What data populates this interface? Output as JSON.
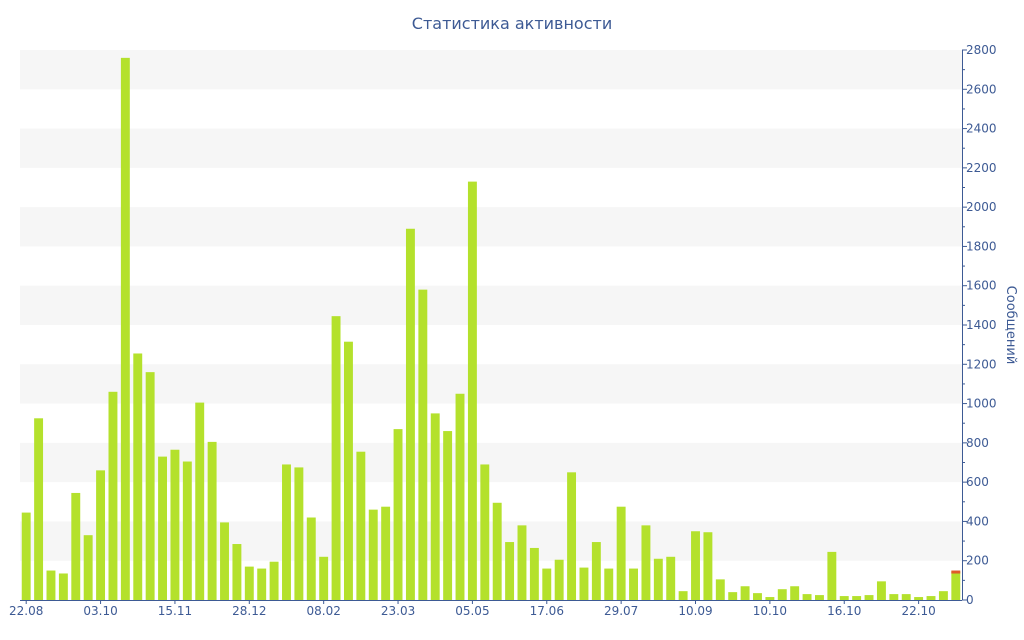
{
  "chart_data": {
    "type": "bar",
    "title": "Статистика активности",
    "ylabel": "Сообщений",
    "y_axis_side": "right",
    "ylim": [
      0,
      2800
    ],
    "y_ticks": [
      0,
      200,
      400,
      600,
      800,
      1000,
      1200,
      1400,
      1600,
      1800,
      2000,
      2200,
      2400,
      2600,
      2800
    ],
    "grid": "alternating horizontal bands",
    "x_tick_labels": [
      {
        "label": "22.08",
        "index": 0
      },
      {
        "label": "03.10",
        "index": 6
      },
      {
        "label": "15.11",
        "index": 12
      },
      {
        "label": "28.12",
        "index": 18
      },
      {
        "label": "08.02",
        "index": 24
      },
      {
        "label": "23.03",
        "index": 30
      },
      {
        "label": "05.05",
        "index": 36
      },
      {
        "label": "17.06",
        "index": 42
      },
      {
        "label": "29.07",
        "index": 48
      },
      {
        "label": "10.09",
        "index": 54
      },
      {
        "label": "10.10",
        "index": 60
      },
      {
        "label": "16.10",
        "index": 66
      },
      {
        "label": "22.10",
        "index": 72
      }
    ],
    "values": [
      445,
      925,
      150,
      135,
      545,
      330,
      660,
      1060,
      2760,
      1255,
      1160,
      730,
      765,
      705,
      1005,
      805,
      395,
      285,
      170,
      160,
      195,
      690,
      675,
      420,
      220,
      1445,
      1315,
      755,
      460,
      475,
      870,
      1890,
      1580,
      950,
      860,
      1050,
      2130,
      690,
      495,
      295,
      380,
      265,
      160,
      205,
      650,
      165,
      295,
      160,
      475,
      160,
      380,
      210,
      220,
      45,
      350,
      345,
      105,
      40,
      70,
      35,
      15,
      55,
      70,
      30,
      25,
      245,
      20,
      20,
      25,
      95,
      30,
      30,
      15,
      20,
      45,
      145
    ],
    "highlight": {
      "index": 75,
      "value": 145,
      "color": "#e05a2b"
    },
    "bar_color": "#b4e12c",
    "band_color": "#f6f6f6",
    "axis_color": "#3d5a94"
  }
}
